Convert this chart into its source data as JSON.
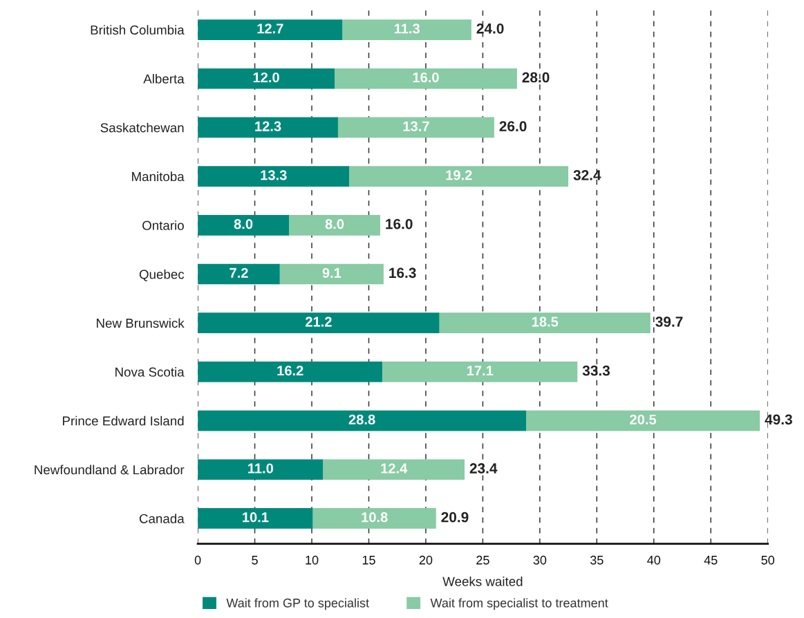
{
  "chart_data": {
    "type": "bar",
    "orientation": "horizontal",
    "stacked": true,
    "categories": [
      "British Columbia",
      "Alberta",
      "Saskatchewan",
      "Manitoba",
      "Ontario",
      "Quebec",
      "New Brunswick",
      "Nova Scotia",
      "Prince Edward Island",
      "Newfoundland & Labrador",
      "Canada"
    ],
    "series": [
      {
        "name": "Wait from GP to specialist",
        "color": "#00897b",
        "values": [
          12.7,
          12.0,
          12.3,
          13.3,
          8.0,
          7.2,
          21.2,
          16.2,
          28.8,
          11.0,
          10.1
        ],
        "value_labels": [
          "12.7",
          "12.0",
          "12.3",
          "13.3",
          "8.0",
          "7.2",
          "21.2",
          "16.2",
          "28.8",
          "11.0",
          "10.1"
        ]
      },
      {
        "name": "Wait from specialist to treatment",
        "color": "#88cba4",
        "values": [
          11.3,
          16.0,
          13.7,
          19.2,
          8.0,
          9.1,
          18.5,
          17.1,
          20.5,
          12.4,
          10.8
        ],
        "value_labels": [
          "11.3",
          "16.0",
          "13.7",
          "19.2",
          "8.0",
          "9.1",
          "18.5",
          "17.1",
          "20.5",
          "12.4",
          "10.8"
        ]
      }
    ],
    "totals": [
      "24.0",
      "28.0",
      "26.0",
      "32.4",
      "16.0",
      "16.3",
      "39.7",
      "33.3",
      "49.3",
      "23.4",
      "20.9"
    ],
    "xlabel": "Weeks waited",
    "xlim": [
      0,
      50
    ],
    "xticks": [
      0,
      5,
      10,
      15,
      20,
      25,
      30,
      35,
      40,
      45,
      50
    ],
    "grid": "x",
    "legend": "bottom"
  }
}
